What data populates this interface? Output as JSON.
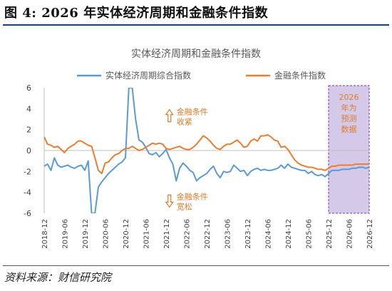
{
  "figure": {
    "title": "图 4:  2026 年实体经济周期和金融条件指数",
    "source": "资料来源：财信研究院"
  },
  "chart_data": {
    "type": "line",
    "title": "实体经济周期和金融条件指数",
    "ylim": [
      -6,
      6
    ],
    "yticks": [
      -6,
      -4,
      -2,
      0,
      2,
      4,
      6
    ],
    "xlim": [
      "2018-12",
      "2026-12"
    ],
    "xticks": [
      "2018-12",
      "2019-06",
      "2019-12",
      "2020-06",
      "2020-12",
      "2021-06",
      "2021-12",
      "2022-06",
      "2022-12",
      "2023-06",
      "2023-12",
      "2024-06",
      "2024-12",
      "2025-06",
      "2025-12",
      "2026-06",
      "2026-12"
    ],
    "grid": false,
    "legend": "top",
    "colors": {
      "blue": "#5b9bd5",
      "orange": "#ed7d31",
      "forecast_fill": "#cfc3e6",
      "forecast_border": "#7c3aa8",
      "annotation": "#e07b2a"
    },
    "series": [
      {
        "name": "实体经济周期综合指数",
        "color": "#5b9bd5",
        "points": [
          [
            "2018-12",
            -1.5
          ],
          [
            "2019-01",
            -1.3
          ],
          [
            "2019-02",
            -1.9
          ],
          [
            "2019-03",
            -0.7
          ],
          [
            "2019-04",
            -1.4
          ],
          [
            "2019-05",
            -1.6
          ],
          [
            "2019-06",
            -1.5
          ],
          [
            "2019-07",
            -1.4
          ],
          [
            "2019-08",
            -1.6
          ],
          [
            "2019-09",
            -1.7
          ],
          [
            "2019-10",
            -1.5
          ],
          [
            "2019-11",
            -1.4
          ],
          [
            "2019-12",
            -1.9
          ],
          [
            "2020-01",
            -1.0
          ],
          [
            "2020-02",
            -6.0
          ],
          [
            "2020-03",
            -6.0
          ],
          [
            "2020-04",
            -3.5
          ],
          [
            "2020-05",
            -3.0
          ],
          [
            "2020-06",
            -2.6
          ],
          [
            "2020-07",
            -2.2
          ],
          [
            "2020-08",
            -1.9
          ],
          [
            "2020-09",
            -1.6
          ],
          [
            "2020-10",
            -1.3
          ],
          [
            "2020-11",
            -1.1
          ],
          [
            "2020-12",
            -0.7
          ],
          [
            "2021-01",
            6.0
          ],
          [
            "2021-02",
            6.0
          ],
          [
            "2021-03",
            3.0
          ],
          [
            "2021-04",
            1.0
          ],
          [
            "2021-05",
            0.8
          ],
          [
            "2021-06",
            0.3
          ],
          [
            "2021-07",
            -0.3
          ],
          [
            "2021-08",
            -0.4
          ],
          [
            "2021-09",
            -0.2
          ],
          [
            "2021-10",
            -0.6
          ],
          [
            "2021-11",
            -0.3
          ],
          [
            "2021-12",
            0.1
          ],
          [
            "2022-01",
            -0.7
          ],
          [
            "2022-02",
            -1.3
          ],
          [
            "2022-03",
            -2.9
          ],
          [
            "2022-04",
            -1.7
          ],
          [
            "2022-05",
            -1.2
          ],
          [
            "2022-06",
            -1.5
          ],
          [
            "2022-07",
            -1.9
          ],
          [
            "2022-08",
            -2.1
          ],
          [
            "2022-09",
            -2.9
          ],
          [
            "2022-10",
            -2.6
          ],
          [
            "2022-11",
            -2.4
          ],
          [
            "2022-12",
            -2.2
          ],
          [
            "2023-01",
            -1.8
          ],
          [
            "2023-02",
            -1.5
          ],
          [
            "2023-03",
            -2.2
          ],
          [
            "2023-04",
            -2.6
          ],
          [
            "2023-05",
            -2.0
          ],
          [
            "2023-06",
            -2.1
          ],
          [
            "2023-07",
            -2.0
          ],
          [
            "2023-08",
            -1.4
          ],
          [
            "2023-09",
            -1.7
          ],
          [
            "2023-10",
            -2.0
          ],
          [
            "2023-11",
            -1.9
          ],
          [
            "2023-12",
            -2.4
          ],
          [
            "2024-01",
            -2.0
          ],
          [
            "2024-02",
            -1.8
          ],
          [
            "2024-03",
            -1.7
          ],
          [
            "2024-04",
            -1.9
          ],
          [
            "2024-05",
            -1.8
          ],
          [
            "2024-06",
            -1.9
          ],
          [
            "2024-07",
            -1.9
          ],
          [
            "2024-08",
            -1.8
          ],
          [
            "2024-09",
            -1.7
          ],
          [
            "2024-10",
            -1.4
          ],
          [
            "2024-11",
            -1.7
          ],
          [
            "2024-12",
            -1.3
          ],
          [
            "2025-01",
            -1.6
          ],
          [
            "2025-02",
            -1.7
          ],
          [
            "2025-03",
            -1.8
          ],
          [
            "2025-04",
            -1.9
          ],
          [
            "2025-05",
            -1.9
          ],
          [
            "2025-06",
            -2.2
          ],
          [
            "2025-07",
            -2.0
          ],
          [
            "2025-08",
            -2.3
          ],
          [
            "2025-09",
            -2.4
          ],
          [
            "2025-10",
            -2.3
          ],
          [
            "2025-11",
            -2.5
          ],
          [
            "2025-12",
            -2.2
          ],
          [
            "2026-01",
            -1.9
          ],
          [
            "2026-02",
            -1.9
          ],
          [
            "2026-03",
            -1.9
          ],
          [
            "2026-04",
            -1.8
          ],
          [
            "2026-05",
            -1.8
          ],
          [
            "2026-06",
            -1.8
          ],
          [
            "2026-07",
            -1.7
          ],
          [
            "2026-08",
            -1.7
          ],
          [
            "2026-09",
            -1.6
          ],
          [
            "2026-10",
            -1.6
          ],
          [
            "2026-11",
            -1.7
          ],
          [
            "2026-12",
            -1.6
          ]
        ]
      },
      {
        "name": "金融条件指数",
        "color": "#ed7d31",
        "points": [
          [
            "2018-12",
            1.3
          ],
          [
            "2019-01",
            0.6
          ],
          [
            "2019-02",
            0.5
          ],
          [
            "2019-03",
            0.3
          ],
          [
            "2019-04",
            0.4
          ],
          [
            "2019-05",
            0.1
          ],
          [
            "2019-06",
            -0.2
          ],
          [
            "2019-07",
            0.2
          ],
          [
            "2019-08",
            0.4
          ],
          [
            "2019-09",
            0.6
          ],
          [
            "2019-10",
            0.9
          ],
          [
            "2019-11",
            0.9
          ],
          [
            "2019-12",
            0.7
          ],
          [
            "2020-01",
            0.5
          ],
          [
            "2020-02",
            0.4
          ],
          [
            "2020-03",
            -0.7
          ],
          [
            "2020-04",
            -1.9
          ],
          [
            "2020-05",
            -2.2
          ],
          [
            "2020-06",
            -1.2
          ],
          [
            "2020-07",
            -1.1
          ],
          [
            "2020-08",
            -0.7
          ],
          [
            "2020-09",
            -0.4
          ],
          [
            "2020-10",
            -0.3
          ],
          [
            "2020-11",
            0.0
          ],
          [
            "2020-12",
            0.2
          ],
          [
            "2021-01",
            0.2
          ],
          [
            "2021-02",
            0.4
          ],
          [
            "2021-03",
            0.2
          ],
          [
            "2021-04",
            0.0
          ],
          [
            "2021-05",
            0.1
          ],
          [
            "2021-06",
            0.3
          ],
          [
            "2021-07",
            0.5
          ],
          [
            "2021-08",
            0.7
          ],
          [
            "2021-09",
            0.6
          ],
          [
            "2021-10",
            0.7
          ],
          [
            "2021-11",
            0.6
          ],
          [
            "2021-12",
            0.2
          ],
          [
            "2022-01",
            0.1
          ],
          [
            "2022-02",
            0.2
          ],
          [
            "2022-03",
            0.3
          ],
          [
            "2022-04",
            0.4
          ],
          [
            "2022-05",
            0.2
          ],
          [
            "2022-06",
            0.1
          ],
          [
            "2022-07",
            0.1
          ],
          [
            "2022-08",
            0.3
          ],
          [
            "2022-09",
            0.6
          ],
          [
            "2022-10",
            1.0
          ],
          [
            "2022-11",
            1.4
          ],
          [
            "2022-12",
            1.2
          ],
          [
            "2023-01",
            0.9
          ],
          [
            "2023-02",
            0.5
          ],
          [
            "2023-03",
            0.2
          ],
          [
            "2023-04",
            0.1
          ],
          [
            "2023-05",
            0.4
          ],
          [
            "2023-06",
            0.6
          ],
          [
            "2023-07",
            0.6
          ],
          [
            "2023-08",
            0.8
          ],
          [
            "2023-09",
            1.0
          ],
          [
            "2023-10",
            0.7
          ],
          [
            "2023-11",
            0.3
          ],
          [
            "2023-12",
            0.4
          ],
          [
            "2024-01",
            0.9
          ],
          [
            "2024-02",
            1.1
          ],
          [
            "2024-03",
            0.9
          ],
          [
            "2024-04",
            1.4
          ],
          [
            "2024-05",
            1.4
          ],
          [
            "2024-06",
            1.5
          ],
          [
            "2024-07",
            1.3
          ],
          [
            "2024-08",
            1.0
          ],
          [
            "2024-09",
            0.9
          ],
          [
            "2024-10",
            0.3
          ],
          [
            "2024-11",
            0.4
          ],
          [
            "2024-12",
            0.1
          ],
          [
            "2025-01",
            -0.4
          ],
          [
            "2025-02",
            -0.9
          ],
          [
            "2025-03",
            -1.2
          ],
          [
            "2025-04",
            -1.4
          ],
          [
            "2025-05",
            -1.5
          ],
          [
            "2025-06",
            -1.6
          ],
          [
            "2025-07",
            -1.6
          ],
          [
            "2025-08",
            -1.7
          ],
          [
            "2025-09",
            -1.8
          ],
          [
            "2025-10",
            -1.8
          ],
          [
            "2025-11",
            -1.9
          ],
          [
            "2025-12",
            -1.7
          ],
          [
            "2026-01",
            -1.5
          ],
          [
            "2026-02",
            -1.5
          ],
          [
            "2026-03",
            -1.4
          ],
          [
            "2026-04",
            -1.4
          ],
          [
            "2026-05",
            -1.4
          ],
          [
            "2026-06",
            -1.4
          ],
          [
            "2026-07",
            -1.4
          ],
          [
            "2026-08",
            -1.3
          ],
          [
            "2026-09",
            -1.3
          ],
          [
            "2026-10",
            -1.3
          ],
          [
            "2026-11",
            -1.3
          ],
          [
            "2026-12",
            -1.3
          ]
        ]
      }
    ],
    "forecast_region": {
      "from": "2025-12",
      "to": "2026-12",
      "label": [
        "2026",
        "年为",
        "预测",
        "数据"
      ]
    },
    "annotations": [
      {
        "arrow": "up",
        "lines": [
          "金融条件",
          "收紧"
        ],
        "x": "2022-01",
        "y": 3.3
      },
      {
        "arrow": "down",
        "lines": [
          "金融条件",
          "宽松"
        ],
        "x": "2022-01",
        "y": -4.8
      }
    ]
  }
}
